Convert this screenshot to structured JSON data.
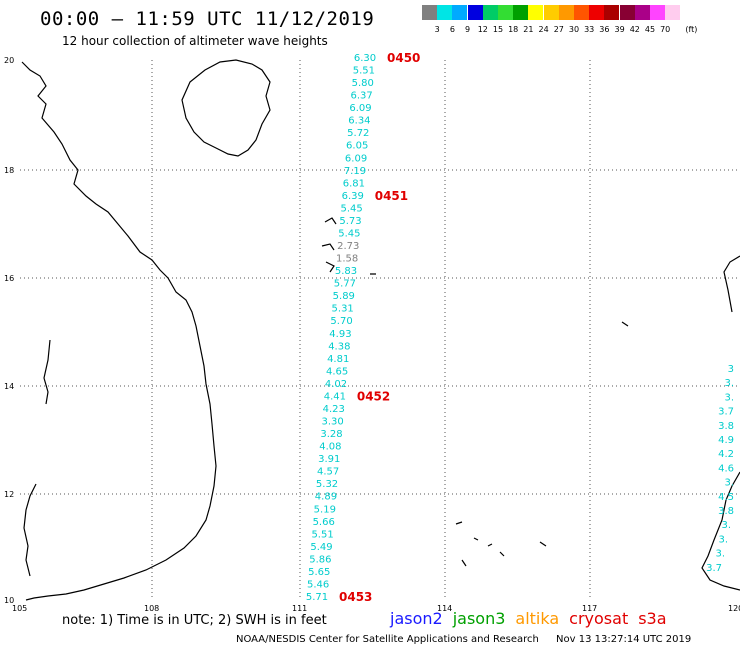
{
  "title": "00:00 – 11:59 UTC 11/12/2019",
  "subtitle": "12 hour collection of altimeter wave heights",
  "colorbar": {
    "colors": [
      "#808080",
      "#00e5e5",
      "#00aaff",
      "#0000e0",
      "#00cc66",
      "#33dd33",
      "#00a000",
      "#ffff00",
      "#ffcc00",
      "#ff9900",
      "#ff5500",
      "#ee0000",
      "#aa0000",
      "#880033",
      "#aa0088",
      "#ff44ff",
      "#ffccee"
    ],
    "labels": [
      "3",
      "6",
      "9",
      "12",
      "15",
      "18",
      "21",
      "24",
      "27",
      "30",
      "33",
      "36",
      "39",
      "42",
      "45",
      "70"
    ],
    "unit": "(ft)"
  },
  "lat_labels": [
    "20",
    "18",
    "16",
    "14",
    "12",
    "10"
  ],
  "lon_labels": [
    "105",
    "108",
    "111",
    "114",
    "117",
    "120"
  ],
  "track": {
    "swh": [
      "6.30",
      "5.51",
      "5.80",
      "6.37",
      "6.09",
      "6.34",
      "5.72",
      "6.05",
      "6.09",
      "7.19",
      "6.81",
      "6.39",
      "5.45",
      "5.73",
      "5.45",
      "2.73",
      "1.58",
      "5.83",
      "5.77",
      "5.89",
      "5.31",
      "5.70",
      "4.93",
      "4.38",
      "4.81",
      "4.65",
      "4.02",
      "4.41",
      "4.23",
      "3.30",
      "3.28",
      "4.08",
      "3.91",
      "4.57",
      "5.32",
      "4.89",
      "5.19",
      "5.66",
      "5.51",
      "5.49",
      "5.86",
      "5.65",
      "5.46",
      "5.71"
    ],
    "passes": [
      {
        "label": "0450",
        "index": 0
      },
      {
        "label": "0451",
        "index": 11
      },
      {
        "label": "0452",
        "index": 27
      },
      {
        "label": "0453",
        "index": 43
      }
    ]
  },
  "right_edge_values": [
    "3",
    "3.",
    "3.",
    "3.7",
    "3.8",
    "4.9",
    "4.2",
    "4.6",
    "3.",
    "4.5",
    "3.8",
    "3.",
    "3.",
    "3.",
    "3.7"
  ],
  "note": "note:  1) Time is in UTC;  2) SWH is in feet",
  "legend": [
    {
      "name": "jason2",
      "color": "#1a1aff"
    },
    {
      "name": "jason3",
      "color": "#00a000"
    },
    {
      "name": "altika",
      "color": "#ff9900"
    },
    {
      "name": "cryosat",
      "color": "#e00000"
    },
    {
      "name": "s3a",
      "color": "#e00000"
    }
  ],
  "footer": {
    "org": "NOAA/NESDIS Center for Satellite Applications and Research",
    "timestamp": "Nov 13 13:27:14 UTC 2019"
  }
}
